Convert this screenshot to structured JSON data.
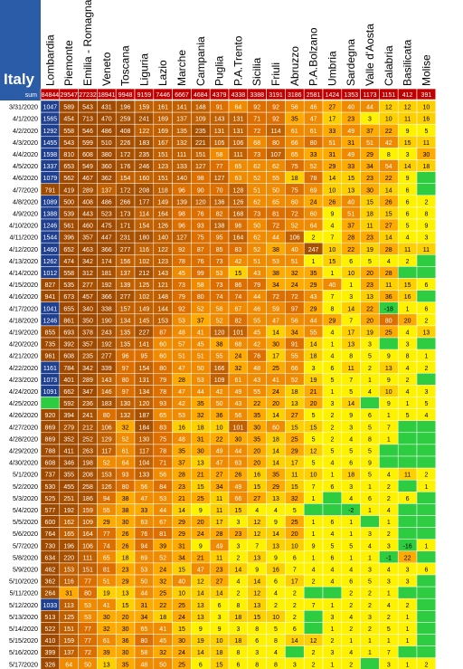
{
  "chart_data": {
    "type": "heatmap",
    "title": "Italy",
    "sum_label": "sum",
    "columns": [
      "Lombardia",
      "Piemonte",
      "Emilia - Romagna",
      "Veneto",
      "Toscana",
      "Liguria",
      "Lazio",
      "Marche",
      "Campania",
      "Puglia",
      "P.A.Trento",
      "Sicilia",
      "Friuli",
      "Abruzzo",
      "P.A.Bolzano",
      "Umbria",
      "Sardegna",
      "Valle d'Aosta",
      "Calabria",
      "Basilicata",
      "Molise"
    ],
    "sums": [
      84844,
      29547,
      27232,
      18941,
      9948,
      9159,
      7446,
      6667,
      4684,
      4379,
      4338,
      3388,
      3191,
      3186,
      2581,
      1424,
      1353,
      1173,
      1151,
      null,
      null
    ],
    "sums_text": [
      "84844",
      "29547",
      "27232",
      "18941",
      "9948",
      "9159",
      "7446",
      "6667",
      "4684",
      "4379",
      "4338",
      "3388",
      "3191",
      "3186",
      "2581",
      "1424",
      "1353",
      "1173",
      "1151",
      "412",
      "391"
    ],
    "dates": [
      "3/31/2020",
      "4/1/2020",
      "4/2/2020",
      "4/3/2020",
      "4/4/2020",
      "4/5/2020",
      "4/6/2020",
      "4/7/2020",
      "4/8/2020",
      "4/9/2020",
      "4/10/2020",
      "4/11/2020",
      "4/12/2020",
      "4/13/2020",
      "4/14/2020",
      "4/15/2020",
      "4/16/2020",
      "4/17/2020",
      "4/18/2020",
      "4/19/2020",
      "4/20/2020",
      "4/21/2020",
      "4/22/2020",
      "4/23/2020",
      "4/24/2020",
      "4/25/2020",
      "4/26/2020",
      "4/27/2020",
      "4/28/2020",
      "4/29/2020",
      "4/30/2020",
      "5/1/2020",
      "5/2/2020",
      "5/3/2020",
      "5/4/2020",
      "5/5/2020",
      "5/6/2020",
      "5/7/2020",
      "5/8/2020",
      "5/9/2020",
      "5/10/2020",
      "5/11/2020",
      "5/12/2020",
      "5/13/2020",
      "5/14/2020",
      "5/15/2020",
      "5/16/2020",
      "5/17/2020"
    ],
    "values": [
      [
        1047,
        589,
        543,
        431,
        196,
        159,
        161,
        141,
        148,
        91,
        64,
        92,
        92,
        56,
        46,
        27,
        40,
        44,
        12,
        12,
        10
      ],
      [
        1565,
        454,
        713,
        470,
        259,
        241,
        169,
        137,
        109,
        143,
        131,
        71,
        92,
        35,
        47,
        17,
        23,
        3,
        10,
        11,
        16
      ],
      [
        1292,
        558,
        546,
        486,
        408,
        122,
        169,
        135,
        235,
        131,
        131,
        72,
        114,
        61,
        61,
        33,
        49,
        37,
        22,
        9,
        5
      ],
      [
        1455,
        543,
        599,
        510,
        226,
        183,
        167,
        132,
        221,
        105,
        106,
        68,
        80,
        66,
        80,
        51,
        31,
        51,
        42,
        15,
        11
      ],
      [
        1598,
        810,
        608,
        380,
        172,
        235,
        151,
        111,
        151,
        58,
        111,
        73,
        107,
        65,
        33,
        31,
        49,
        29,
        8,
        3,
        30
      ],
      [
        1337,
        653,
        549,
        360,
        176,
        246,
        123,
        133,
        127,
        77,
        65,
        62,
        62,
        75,
        52,
        29,
        33,
        34,
        54,
        14,
        18
      ],
      [
        1079,
        562,
        467,
        362,
        154,
        160,
        151,
        140,
        98,
        127,
        63,
        52,
        55,
        18,
        78,
        14,
        15,
        23,
        22,
        9,
        null
      ],
      [
        791,
        419,
        289,
        137,
        172,
        208,
        118,
        96,
        90,
        70,
        128,
        51,
        50,
        75,
        69,
        10,
        13,
        30,
        14,
        6,
        null
      ],
      [
        1089,
        500,
        408,
        486,
        266,
        177,
        149,
        139,
        120,
        136,
        126,
        62,
        65,
        60,
        24,
        26,
        40,
        15,
        26,
        6,
        2
      ],
      [
        1388,
        539,
        443,
        523,
        173,
        114,
        164,
        98,
        76,
        82,
        168,
        73,
        81,
        72,
        60,
        9,
        51,
        18,
        15,
        6,
        8
      ],
      [
        1246,
        561,
        460,
        475,
        171,
        154,
        126,
        96,
        93,
        138,
        96,
        50,
        72,
        52,
        64,
        4,
        37,
        11,
        27,
        5,
        9
      ],
      [
        1544,
        396,
        357,
        447,
        231,
        180,
        140,
        127,
        75,
        95,
        164,
        62,
        44,
        106,
        2,
        7,
        28,
        23,
        14,
        4,
        3
      ],
      [
        1460,
        652,
        463,
        366,
        277,
        116,
        122,
        92,
        87,
        85,
        83,
        52,
        38,
        40,
        247,
        10,
        22,
        19,
        28,
        11,
        11
      ],
      [
        1262,
        474,
        342,
        174,
        156,
        102,
        123,
        78,
        76,
        73,
        42,
        51,
        53,
        51,
        1,
        15,
        6,
        5,
        4,
        2,
        null
      ],
      [
        1012,
        558,
        312,
        181,
        137,
        212,
        143,
        45,
        99,
        53,
        15,
        43,
        38,
        32,
        35,
        1,
        10,
        20,
        28,
        null,
        null
      ],
      [
        827,
        535,
        277,
        192,
        139,
        125,
        121,
        73,
        58,
        73,
        86,
        79,
        34,
        24,
        29,
        40,
        1,
        23,
        11,
        15,
        6
      ],
      [
        941,
        673,
        457,
        366,
        277,
        102,
        148,
        79,
        80,
        74,
        74,
        44,
        72,
        72,
        43,
        7,
        3,
        13,
        36,
        16,
        null
      ],
      [
        1041,
        655,
        340,
        338,
        157,
        149,
        144,
        92,
        52,
        58,
        67,
        46,
        59,
        97,
        29,
        8,
        14,
        22,
        -18,
        1,
        6
      ],
      [
        1246,
        861,
        350,
        190,
        134,
        145,
        153,
        53,
        37,
        52,
        82,
        55,
        47,
        56,
        44,
        29,
        7,
        20,
        80,
        20,
        2
      ],
      [
        855,
        693,
        378,
        243,
        135,
        227,
        87,
        48,
        41,
        120,
        101,
        45,
        14,
        34,
        55,
        4,
        17,
        19,
        25,
        4,
        13
      ],
      [
        735,
        392,
        357,
        192,
        135,
        141,
        60,
        57,
        45,
        38,
        68,
        42,
        30,
        91,
        14,
        1,
        13,
        3,
        null,
        3,
        null
      ],
      [
        961,
        608,
        235,
        277,
        96,
        95,
        60,
        51,
        51,
        55,
        24,
        76,
        17,
        55,
        18,
        4,
        8,
        5,
        9,
        8,
        1
      ],
      [
        1161,
        784,
        342,
        339,
        97,
        154,
        80,
        47,
        50,
        166,
        32,
        48,
        25,
        66,
        3,
        6,
        11,
        2,
        13,
        4,
        2
      ],
      [
        1073,
        401,
        289,
        143,
        80,
        131,
        79,
        28,
        53,
        109,
        61,
        43,
        41,
        52,
        19,
        5,
        7,
        1,
        9,
        2,
        null
      ],
      [
        1091,
        662,
        347,
        146,
        97,
        134,
        78,
        47,
        44,
        42,
        49,
        55,
        24,
        18,
        21,
        1,
        5,
        4,
        10,
        4,
        3
      ],
      [
        null,
        592,
        236,
        183,
        130,
        120,
        93,
        42,
        35,
        50,
        43,
        22,
        20,
        13,
        20,
        3,
        14,
        null,
        9,
        1,
        5
      ],
      [
        920,
        394,
        241,
        80,
        132,
        187,
        65,
        53,
        32,
        36,
        56,
        35,
        14,
        27,
        5,
        2,
        9,
        6,
        1,
        5,
        4
      ],
      [
        869,
        279,
        212,
        106,
        32,
        184,
        83,
        16,
        18,
        10,
        101,
        30,
        60,
        15,
        15,
        2,
        3,
        5,
        7,
        null,
        null
      ],
      [
        869,
        352,
        252,
        129,
        52,
        130,
        75,
        48,
        31,
        22,
        30,
        35,
        18,
        25,
        5,
        2,
        4,
        8,
        1,
        null,
        null
      ],
      [
        788,
        411,
        263,
        117,
        61,
        117,
        78,
        35,
        30,
        49,
        44,
        20,
        14,
        29,
        12,
        5,
        5,
        5,
        null,
        null,
        null
      ],
      [
        608,
        346,
        198,
        52,
        64,
        104,
        71,
        37,
        13,
        47,
        63,
        20,
        14,
        17,
        5,
        4,
        6,
        9,
        null,
        null,
        null
      ],
      [
        737,
        355,
        208,
        153,
        93,
        133,
        56,
        28,
        21,
        27,
        26,
        16,
        35,
        11,
        10,
        1,
        18,
        5,
        4,
        11,
        2
      ],
      [
        530,
        455,
        258,
        126,
        80,
        56,
        84,
        23,
        15,
        34,
        49,
        15,
        29,
        15,
        7,
        6,
        3,
        1,
        2,
        null,
        1
      ],
      [
        525,
        251,
        186,
        94,
        38,
        47,
        53,
        21,
        25,
        11,
        66,
        27,
        13,
        32,
        1,
        null,
        4,
        6,
        2,
        6,
        null
      ],
      [
        577,
        192,
        159,
        55,
        38,
        33,
        44,
        14,
        9,
        11,
        15,
        4,
        4,
        5,
        null,
        null,
        -2,
        1,
        4,
        null,
        null
      ],
      [
        600,
        162,
        109,
        29,
        30,
        63,
        67,
        29,
        20,
        17,
        3,
        12,
        9,
        25,
        1,
        6,
        1,
        null,
        1,
        null,
        null
      ],
      [
        764,
        165,
        164,
        77,
        26,
        76,
        81,
        29,
        24,
        28,
        23,
        12,
        14,
        20,
        1,
        4,
        1,
        3,
        2,
        null,
        null
      ],
      [
        730,
        196,
        106,
        74,
        26,
        94,
        39,
        31,
        9,
        49,
        3,
        7,
        13,
        10,
        9,
        5,
        5,
        4,
        3,
        -16,
        1
      ],
      [
        634,
        220,
        111,
        65,
        18,
        69,
        52,
        34,
        21,
        11,
        2,
        13,
        9,
        6,
        1,
        6,
        1,
        1,
        -1,
        22,
        null
      ],
      [
        462,
        153,
        151,
        81,
        23,
        53,
        24,
        15,
        47,
        23,
        14,
        9,
        16,
        7,
        4,
        4,
        4,
        3,
        4,
        3,
        6
      ],
      [
        362,
        116,
        77,
        51,
        29,
        50,
        32,
        40,
        12,
        27,
        4,
        14,
        6,
        17,
        2,
        4,
        6,
        5,
        3,
        3,
        null
      ],
      [
        264,
        31,
        80,
        19,
        13,
        44,
        25,
        10,
        14,
        14,
        2,
        12,
        4,
        2,
        null,
        null,
        2,
        2,
        1,
        null,
        null
      ],
      [
        1033,
        113,
        53,
        41,
        15,
        31,
        22,
        25,
        13,
        6,
        8,
        13,
        2,
        2,
        7,
        1,
        2,
        2,
        4,
        2,
        null
      ],
      [
        513,
        125,
        53,
        30,
        20,
        34,
        18,
        24,
        13,
        3,
        18,
        15,
        10,
        2,
        null,
        3,
        4,
        3,
        2,
        1,
        null
      ],
      [
        522,
        151,
        77,
        32,
        30,
        65,
        41,
        15,
        9,
        9,
        3,
        8,
        5,
        6,
        null,
        1,
        2,
        2,
        5,
        1,
        null
      ],
      [
        410,
        159,
        77,
        61,
        36,
        80,
        45,
        30,
        19,
        10,
        18,
        6,
        8,
        14,
        12,
        2,
        1,
        1,
        1,
        1,
        null
      ],
      [
        399,
        137,
        72,
        39,
        30,
        58,
        32,
        24,
        14,
        18,
        8,
        3,
        4,
        null,
        2,
        3,
        4,
        1,
        7,
        null,
        null
      ],
      [
        326,
        64,
        50,
        13,
        35,
        48,
        50,
        25,
        6,
        15,
        6,
        8,
        8,
        3,
        2,
        1,
        2,
        null,
        3,
        1,
        2
      ]
    ],
    "color_scale": {
      "-20": "#2ecc40",
      "0": "#33cc33",
      "1": "#fff200",
      "10": "#ffb000",
      "40": "#f07800",
      "100": "#b85a00",
      "200": "#a05000",
      "1000": "#1f3f8f"
    },
    "colors": {
      "title_bg": "#2b5ca8",
      "header_bg": "#ffffff",
      "sum_bg": "#c00000",
      "grid": "#ffffff"
    }
  }
}
